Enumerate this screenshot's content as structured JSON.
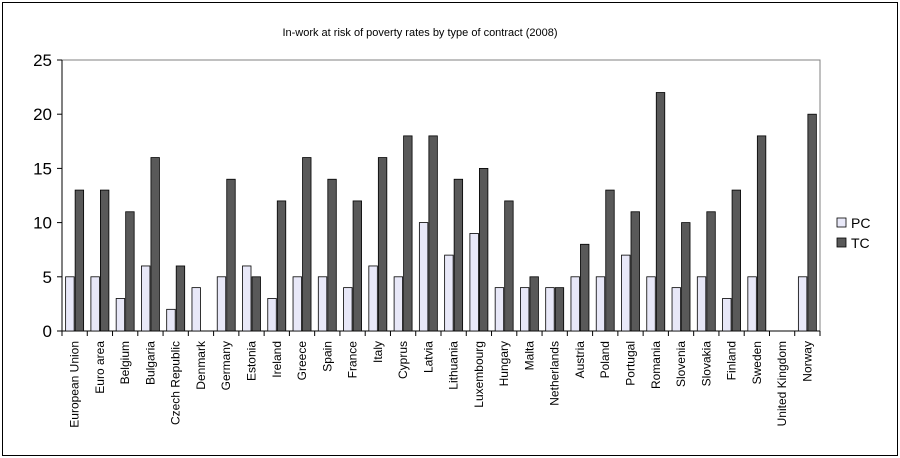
{
  "chart_data": {
    "type": "bar",
    "title": "In-work at risk of poverty rates by type of contract (2008)",
    "xlabel": "",
    "ylabel": "",
    "ylim": [
      0,
      25
    ],
    "yticks": [
      0,
      5,
      10,
      15,
      20,
      25
    ],
    "grid": false,
    "legend_position": "right",
    "categories": [
      "European Union",
      "Euro area",
      "Belgium",
      "Bulgaria",
      "Czech Republic",
      "Denmark",
      "Germany",
      "Estonia",
      "Ireland",
      "Greece",
      "Spain",
      "France",
      "Italy",
      "Cyprus",
      "Latvia",
      "Lithuania",
      "Luxembourg",
      "Hungary",
      "Malta",
      "Netherlands",
      "Austria",
      "Poland",
      "Portugal",
      "Romania",
      "Slovenia",
      "Slovakia",
      "Finland",
      "Sweden",
      "United Kingdom",
      "Norway"
    ],
    "series": [
      {
        "name": "PC",
        "color": "#e8e8f8",
        "values": [
          5,
          5,
          3,
          6,
          2,
          4,
          5,
          6,
          3,
          5,
          5,
          4,
          6,
          5,
          10,
          7,
          9,
          4,
          4,
          4,
          5,
          5,
          7,
          5,
          4,
          5,
          3,
          5,
          null,
          5
        ]
      },
      {
        "name": "TC",
        "color": "#595959",
        "values": [
          13,
          13,
          11,
          16,
          6,
          null,
          14,
          5,
          12,
          16,
          14,
          12,
          16,
          18,
          18,
          14,
          15,
          12,
          5,
          4,
          8,
          13,
          11,
          22,
          10,
          11,
          13,
          18,
          null,
          20
        ]
      }
    ]
  }
}
